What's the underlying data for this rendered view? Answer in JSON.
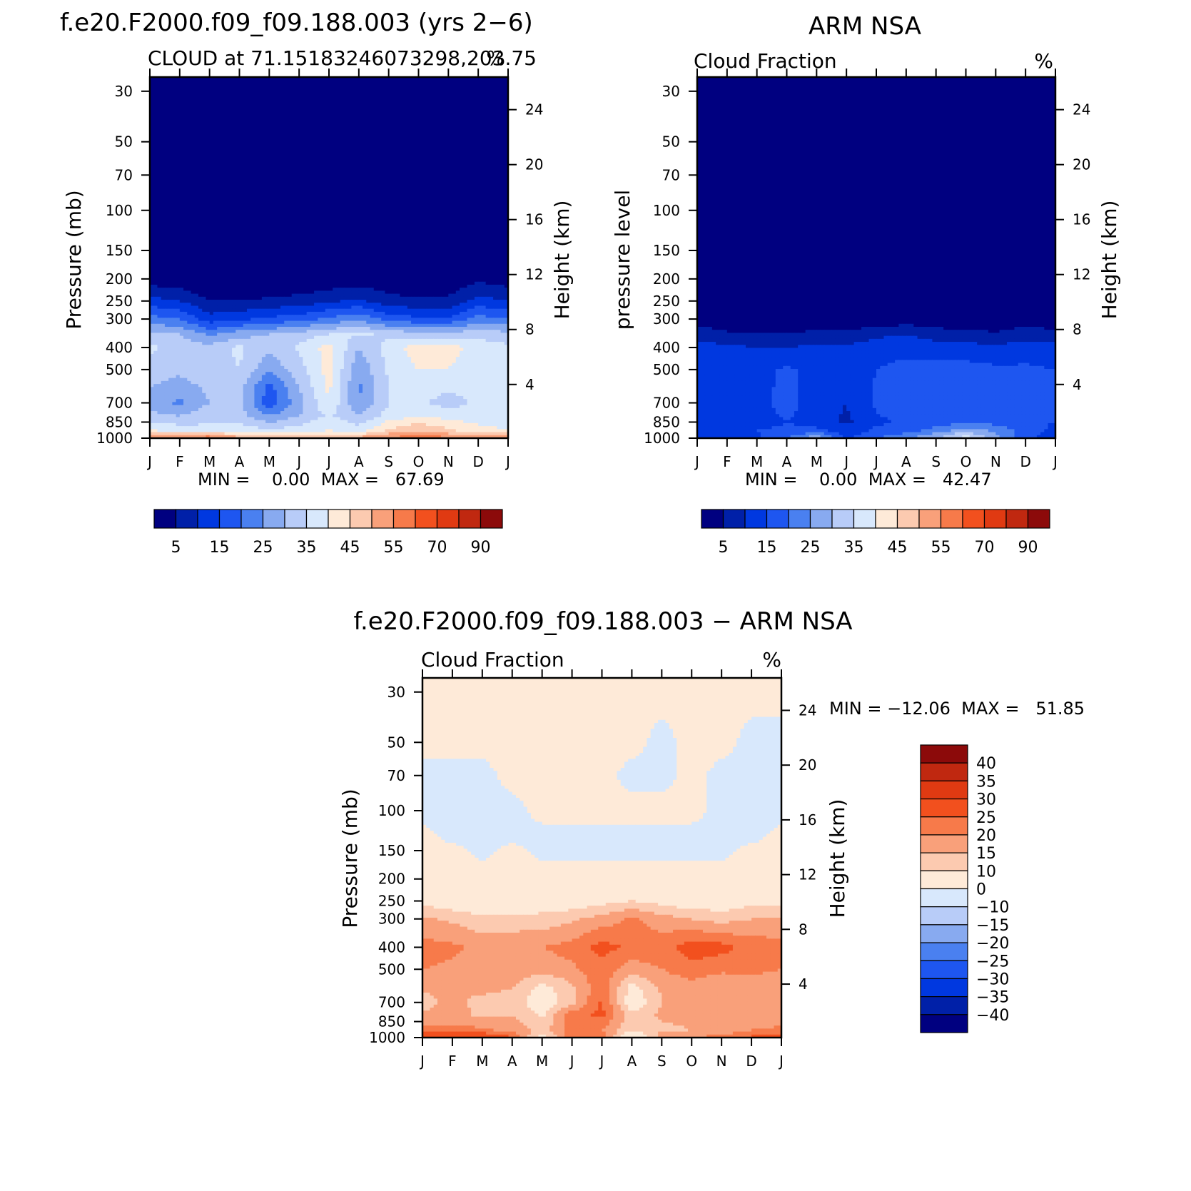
{
  "chart_data": [
    {
      "type": "heatmap",
      "title": "f.e20.F2000.f09_f09.188.003 (yrs 2−6)",
      "subtitle": "CLOUD at 71.15183246073298,203.75",
      "units": "%",
      "ylabel": "Pressure (mb)",
      "ylabel_right": "Height (km)",
      "xlabel": "",
      "x_ticks": [
        "J",
        "F",
        "M",
        "A",
        "M",
        "J",
        "J",
        "A",
        "S",
        "O",
        "N",
        "D",
        "J"
      ],
      "y_ticks": [
        "30",
        "50",
        "70",
        "100",
        "150",
        "200",
        "250",
        "300",
        "400",
        "500",
        "700",
        "850",
        "1000"
      ],
      "y_right_ticks": [
        "24",
        "20",
        "16",
        "12",
        "8",
        "4"
      ],
      "ylim": [
        1000,
        25
      ],
      "minmax_text": "MIN =    0.00  MAX =   67.69",
      "min": 0.0,
      "max": 67.69,
      "colorbar_labels": [
        "5",
        "15",
        "25",
        "35",
        "45",
        "55",
        "70",
        "90"
      ],
      "rows": [
        {
          "p": 30,
          "vals": [
            0,
            0,
            0,
            0,
            0,
            0,
            0,
            0,
            0,
            0,
            0,
            0,
            0
          ]
        },
        {
          "p": 100,
          "vals": [
            0,
            0,
            0,
            0,
            0,
            0,
            0,
            0,
            0,
            0,
            0,
            0,
            0
          ]
        },
        {
          "p": 200,
          "vals": [
            2,
            1,
            0,
            0,
            0,
            0,
            1,
            2,
            1,
            0,
            1,
            4,
            2
          ]
        },
        {
          "p": 250,
          "vals": [
            12,
            10,
            5,
            5,
            6,
            7,
            9,
            11,
            7,
            6,
            6,
            12,
            10
          ]
        },
        {
          "p": 300,
          "vals": [
            22,
            20,
            12,
            14,
            16,
            18,
            21,
            24,
            18,
            16,
            16,
            22,
            20
          ]
        },
        {
          "p": 350,
          "vals": [
            32,
            30,
            24,
            28,
            30,
            32,
            35,
            36,
            34,
            32,
            32,
            33,
            32
          ]
        },
        {
          "p": 400,
          "vals": [
            36,
            33,
            32,
            36,
            31,
            36,
            42,
            30,
            37,
            43,
            42,
            38,
            36
          ]
        },
        {
          "p": 500,
          "vals": [
            33,
            31,
            33,
            35,
            26,
            33,
            42,
            26,
            36,
            40,
            40,
            37,
            36
          ]
        },
        {
          "p": 600,
          "vals": [
            30,
            28,
            31,
            32,
            18,
            30,
            41,
            24,
            35,
            37,
            36,
            36,
            35
          ]
        },
        {
          "p": 700,
          "vals": [
            27,
            24,
            30,
            31,
            17,
            28,
            40,
            25,
            35,
            36,
            33,
            36,
            35
          ]
        },
        {
          "p": 800,
          "vals": [
            32,
            30,
            34,
            32,
            25,
            30,
            36,
            30,
            37,
            40,
            38,
            37,
            36
          ]
        },
        {
          "p": 925,
          "vals": [
            40,
            38,
            36,
            38,
            36,
            38,
            40,
            38,
            46,
            50,
            46,
            42,
            40
          ]
        },
        {
          "p": 1000,
          "vals": [
            55,
            55,
            60,
            52,
            50,
            48,
            50,
            52,
            55,
            60,
            56,
            52,
            55
          ]
        }
      ]
    },
    {
      "type": "heatmap",
      "title": "ARM NSA",
      "subtitle": "Cloud Fraction",
      "units": "%",
      "ylabel": "pressure level",
      "ylabel_right": "Height (km)",
      "xlabel": "",
      "x_ticks": [
        "J",
        "F",
        "M",
        "A",
        "M",
        "J",
        "J",
        "A",
        "S",
        "O",
        "N",
        "D",
        "J"
      ],
      "y_ticks": [
        "30",
        "50",
        "70",
        "100",
        "150",
        "200",
        "250",
        "300",
        "400",
        "500",
        "700",
        "850",
        "1000"
      ],
      "y_right_ticks": [
        "24",
        "20",
        "16",
        "12",
        "8",
        "4"
      ],
      "ylim": [
        1000,
        25
      ],
      "minmax_text": "MIN =    0.00  MAX =   42.47",
      "min": 0.0,
      "max": 42.47,
      "colorbar_labels": [
        "5",
        "15",
        "25",
        "35",
        "45",
        "55",
        "70",
        "90"
      ],
      "rows": [
        {
          "p": 30,
          "vals": [
            0,
            0,
            0,
            0,
            0,
            0,
            0,
            0,
            0,
            0,
            0,
            0,
            0
          ]
        },
        {
          "p": 200,
          "vals": [
            0,
            0,
            0,
            0,
            0,
            0,
            0,
            0,
            0,
            0,
            0,
            0,
            0
          ]
        },
        {
          "p": 300,
          "vals": [
            3,
            1,
            0,
            0,
            0,
            0,
            1,
            2,
            1,
            0,
            0,
            2,
            1
          ]
        },
        {
          "p": 350,
          "vals": [
            8,
            6,
            5,
            5,
            7,
            7,
            9,
            10,
            8,
            7,
            6,
            8,
            7
          ]
        },
        {
          "p": 400,
          "vals": [
            12,
            11,
            10,
            10,
            11,
            11,
            12,
            13,
            12,
            12,
            11,
            12,
            12
          ]
        },
        {
          "p": 500,
          "vals": [
            14,
            13,
            13,
            16,
            13,
            12,
            15,
            17,
            17,
            17,
            16,
            16,
            15
          ]
        },
        {
          "p": 700,
          "vals": [
            14,
            13,
            13,
            17,
            12,
            10,
            16,
            18,
            18,
            18,
            18,
            17,
            15
          ]
        },
        {
          "p": 850,
          "vals": [
            15,
            13,
            13,
            15,
            13,
            9,
            14,
            16,
            17,
            19,
            18,
            16,
            15
          ]
        },
        {
          "p": 925,
          "vals": [
            13,
            14,
            15,
            16,
            16,
            12,
            16,
            18,
            22,
            28,
            24,
            17,
            14
          ]
        },
        {
          "p": 1000,
          "vals": [
            10,
            12,
            14,
            20,
            30,
            14,
            20,
            24,
            30,
            38,
            26,
            16,
            12
          ]
        }
      ]
    },
    {
      "type": "heatmap",
      "title": "f.e20.F2000.f09_f09.188.003 − ARM NSA",
      "subtitle": "Cloud Fraction",
      "units": "%",
      "ylabel": "Pressure (mb)",
      "ylabel_right": "Height (km)",
      "xlabel": "",
      "x_ticks": [
        "J",
        "F",
        "M",
        "A",
        "M",
        "J",
        "J",
        "A",
        "S",
        "O",
        "N",
        "D",
        "J"
      ],
      "y_ticks": [
        "30",
        "50",
        "70",
        "100",
        "150",
        "200",
        "250",
        "300",
        "400",
        "500",
        "700",
        "850",
        "1000"
      ],
      "y_right_ticks": [
        "24",
        "20",
        "16",
        "12",
        "8",
        "4"
      ],
      "ylim": [
        1000,
        25
      ],
      "minmax_text": "MIN = −12.06  MAX =   51.85",
      "min": -12.06,
      "max": 51.85,
      "colorbar_labels": [
        "40",
        "35",
        "30",
        "25",
        "20",
        "15",
        "10",
        "0",
        "−10",
        "−15",
        "−20",
        "−25",
        "−30",
        "−35",
        "−40"
      ],
      "rows": [
        {
          "p": 30,
          "vals": [
            1,
            1,
            1,
            1,
            1,
            1,
            1,
            1,
            1,
            1,
            1,
            1,
            1
          ]
        },
        {
          "p": 50,
          "vals": [
            1,
            1,
            1,
            1,
            1,
            1,
            1,
            1,
            -1,
            1,
            1,
            -1,
            -1
          ]
        },
        {
          "p": 70,
          "vals": [
            -1,
            -1,
            -1,
            1,
            1,
            1,
            1,
            -1,
            -1,
            1,
            -1,
            -1,
            -1
          ]
        },
        {
          "p": 100,
          "vals": [
            -1,
            -1,
            -1,
            -1,
            1,
            1,
            1,
            1,
            1,
            1,
            -1,
            -1,
            -1
          ]
        },
        {
          "p": 130,
          "vals": [
            1,
            -1,
            -1,
            -1,
            -1,
            -1,
            -1,
            -1,
            -1,
            -1,
            -1,
            -1,
            1
          ]
        },
        {
          "p": 150,
          "vals": [
            1,
            1,
            -1,
            1,
            -1,
            -1,
            -1,
            -1,
            -1,
            -1,
            -1,
            1,
            1
          ]
        },
        {
          "p": 200,
          "vals": [
            2,
            2,
            2,
            2,
            2,
            2,
            2,
            2,
            2,
            2,
            2,
            2,
            2
          ]
        },
        {
          "p": 250,
          "vals": [
            8,
            6,
            5,
            5,
            6,
            6,
            8,
            10,
            8,
            6,
            6,
            8,
            8
          ]
        },
        {
          "p": 300,
          "vals": [
            16,
            14,
            11,
            11,
            12,
            14,
            17,
            21,
            17,
            15,
            13,
            15,
            16
          ]
        },
        {
          "p": 400,
          "vals": [
            22,
            21,
            19,
            20,
            20,
            22,
            27,
            24,
            23,
            28,
            27,
            23,
            22
          ]
        },
        {
          "p": 500,
          "vals": [
            20,
            19,
            17,
            19,
            17,
            19,
            23,
            17,
            20,
            23,
            21,
            21,
            20
          ]
        },
        {
          "p": 600,
          "vals": [
            16,
            15,
            17,
            15,
            8,
            14,
            24,
            8,
            16,
            18,
            16,
            18,
            17
          ]
        },
        {
          "p": 700,
          "vals": [
            13,
            17,
            13,
            13,
            6,
            13,
            26,
            5,
            15,
            15,
            15,
            17,
            17
          ]
        },
        {
          "p": 800,
          "vals": [
            16,
            17,
            14,
            15,
            9,
            24,
            26,
            12,
            16,
            16,
            15,
            16,
            17
          ]
        },
        {
          "p": 925,
          "vals": [
            22,
            22,
            21,
            18,
            13,
            22,
            20,
            10,
            14,
            15,
            16,
            20,
            21
          ]
        },
        {
          "p": 1000,
          "vals": [
            30,
            30,
            32,
            26,
            6,
            24,
            24,
            2,
            18,
            20,
            22,
            26,
            30
          ]
        }
      ]
    }
  ],
  "palettes": {
    "abs_colors": [
      "#000080",
      "#0020a8",
      "#0038e0",
      "#1e56f0",
      "#4a80f0",
      "#88aaf0",
      "#b8ccf8",
      "#d8e8fc",
      "#feead8",
      "#fccab0",
      "#f9a07a",
      "#f77a4a",
      "#f2501e",
      "#e03a12",
      "#c02810",
      "#8c0a0a"
    ],
    "abs_bounds": [
      0,
      5,
      10,
      15,
      20,
      25,
      30,
      35,
      40,
      45,
      50,
      55,
      60,
      70,
      80,
      90
    ],
    "diff_colors": [
      "#000080",
      "#0020a8",
      "#0038e0",
      "#1e56f0",
      "#4a80f0",
      "#88aaf0",
      "#b8ccf8",
      "#d8e8fc",
      "#feead8",
      "#fccab0",
      "#f9a07a",
      "#f77a4a",
      "#f2501e",
      "#e03a12",
      "#c02810",
      "#8c0a0a"
    ],
    "diff_bounds": [
      -1000,
      -40,
      -35,
      -30,
      -25,
      -20,
      -15,
      -10,
      0,
      10,
      15,
      20,
      25,
      30,
      35,
      40
    ]
  }
}
